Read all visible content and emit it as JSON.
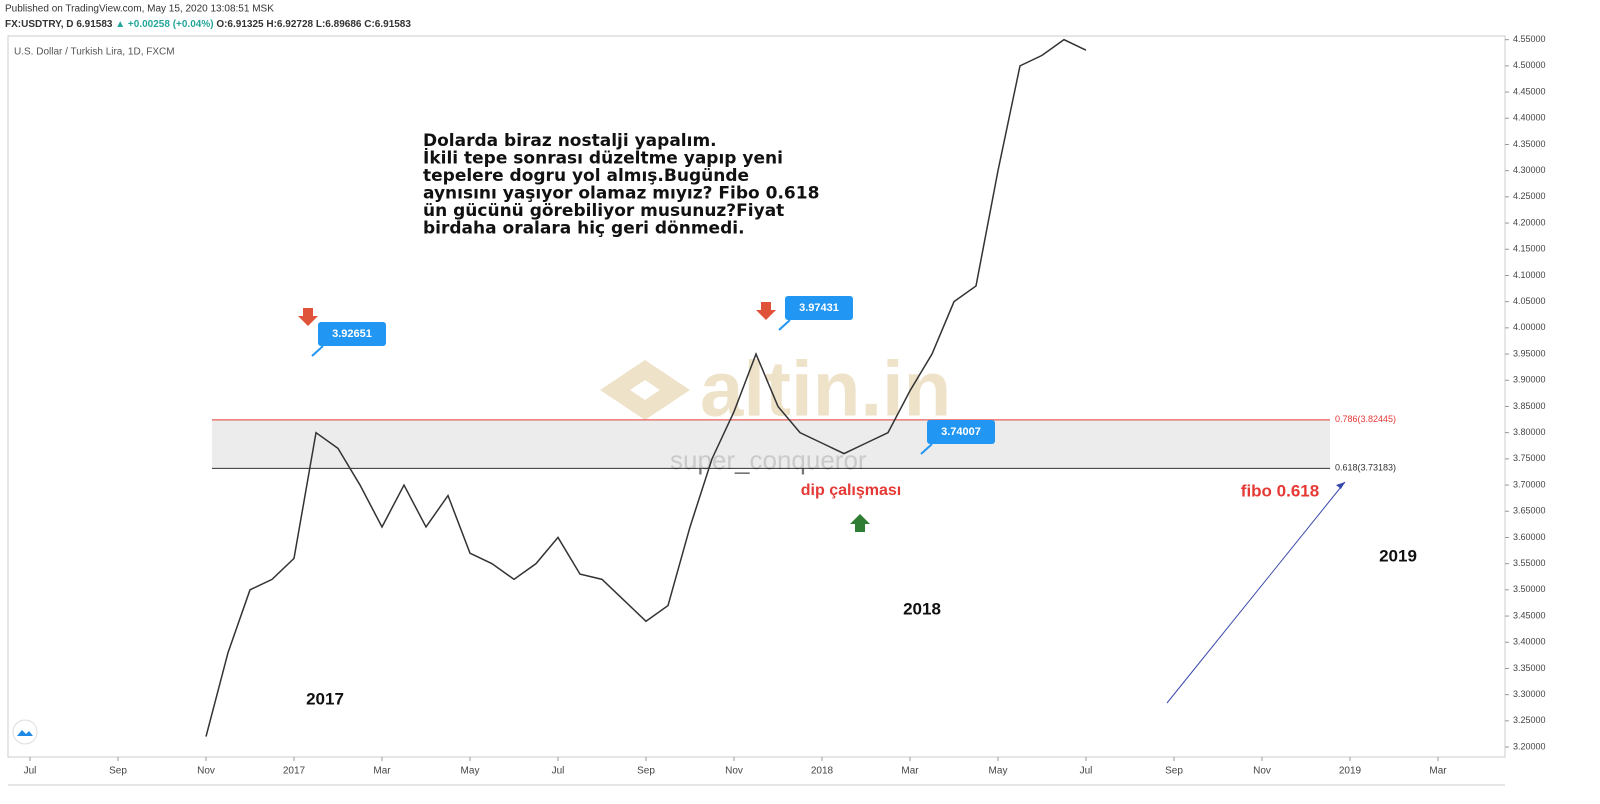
{
  "header": {
    "published": "Published on TradingView.com, May 15, 2020 13:08:51 MSK",
    "symbol": "FX:USDTRY, D",
    "last": "6.91583",
    "change": "▲ +0.00258 (+0.04%)",
    "open": "O:6.91325",
    "high": "H:6.92728",
    "low": "L:6.89686",
    "close": "C:6.91583"
  },
  "chart_data": {
    "type": "line",
    "title": "U.S. Dollar / Turkish Lira, 1D, FXCM",
    "color": "#333333",
    "categories": [
      "Jul",
      null,
      null,
      null,
      "Sep",
      null,
      null,
      null,
      "Nov",
      null,
      null,
      null,
      "2017",
      null,
      null,
      null,
      "Mar",
      null,
      null,
      null,
      "May",
      null,
      null,
      null,
      "Jul",
      null,
      null,
      null,
      "Sep",
      null,
      null,
      null,
      "Nov",
      null,
      null,
      null,
      "2018",
      null,
      null,
      null,
      "Mar",
      null,
      null,
      null,
      "May",
      null,
      null,
      null,
      "Jul",
      null,
      null,
      null,
      "Sep",
      null,
      null,
      null,
      "Nov",
      null,
      null,
      null,
      "2019",
      null,
      null,
      null,
      "Mar",
      null
    ],
    "values": [
      null,
      null,
      null,
      null,
      null,
      null,
      null,
      null,
      3.22,
      3.38,
      3.5,
      3.52,
      3.56,
      3.8,
      3.77,
      3.7,
      3.62,
      3.7,
      3.62,
      3.68,
      3.57,
      3.55,
      3.52,
      3.55,
      3.6,
      3.53,
      3.52,
      3.48,
      3.44,
      3.47,
      3.62,
      3.75,
      3.84,
      3.95,
      3.85,
      3.8,
      3.78,
      3.76,
      3.78,
      3.8,
      3.88,
      3.95,
      4.05,
      4.08,
      4.3,
      4.5,
      4.52,
      4.55,
      4.53,
      null,
      null,
      null,
      null,
      null,
      null,
      null,
      null,
      null,
      null,
      null,
      null,
      null,
      null,
      null,
      null,
      null
    ],
    "ylim": [
      3.181,
      4.557
    ],
    "yticks": [
      {
        "value": 3.2,
        "label": "3.20000"
      },
      {
        "value": 3.25,
        "label": "3.25000"
      },
      {
        "value": 3.3,
        "label": "3.30000"
      },
      {
        "value": 3.35,
        "label": "3.35000"
      },
      {
        "value": 3.4,
        "label": "3.40000"
      },
      {
        "value": 3.45,
        "label": "3.45000"
      },
      {
        "value": 3.5,
        "label": "3.50000"
      },
      {
        "value": 3.55,
        "label": "3.55000"
      },
      {
        "value": 3.6,
        "label": "3.60000"
      },
      {
        "value": 3.65,
        "label": "3.65000"
      },
      {
        "value": 3.7,
        "label": "3.70000"
      },
      {
        "value": 3.75,
        "label": "3.75000"
      },
      {
        "value": 3.8,
        "label": "3.80000"
      },
      {
        "value": 3.85,
        "label": "3.85000"
      },
      {
        "value": 3.9,
        "label": "3.90000"
      },
      {
        "value": 3.95,
        "label": "3.95000"
      },
      {
        "value": 4.0,
        "label": "4.00000"
      },
      {
        "value": 4.05,
        "label": "4.05000"
      },
      {
        "value": 4.1,
        "label": "4.10000"
      },
      {
        "value": 4.15,
        "label": "4.15000"
      },
      {
        "value": 4.2,
        "label": "4.20000"
      },
      {
        "value": 4.25,
        "label": "4.25000"
      },
      {
        "value": 4.3,
        "label": "4.30000"
      },
      {
        "value": 4.35,
        "label": "4.35000"
      },
      {
        "value": 4.4,
        "label": "4.40000"
      },
      {
        "value": 4.45,
        "label": "4.45000"
      },
      {
        "value": 4.5,
        "label": "4.50000"
      },
      {
        "value": 4.55,
        "label": "4.55000"
      }
    ],
    "grid": false,
    "fib_levels": [
      {
        "value": 3.82445,
        "label": "0.786(3.82445)",
        "color": "#e53935"
      },
      {
        "value": 3.73183,
        "label": "0.618(3.73183)",
        "color": "#333333"
      }
    ],
    "price_callouts": [
      3.92651,
      3.97431,
      3.74007
    ],
    "note_lines": [
      "Dolarda biraz nostalji yapalım.",
      "İkili tepe sonrası düzeltme yapıp yeni",
      "tepelere dogru yol almış.Bugünde",
      "aynısını yaşıyor olamaz mıyız? Fibo 0.618",
      "ün gücünü görebiliyor musunuz?Fiyat",
      "birdaha oralara hiç geri dönmedi."
    ],
    "year_labels": [
      "2017",
      "2018",
      "2019"
    ],
    "dip_label": "dip çalışması",
    "fibo_label": "fibo 0.618",
    "watermark": "altin.in",
    "author": "super_conqueror"
  }
}
